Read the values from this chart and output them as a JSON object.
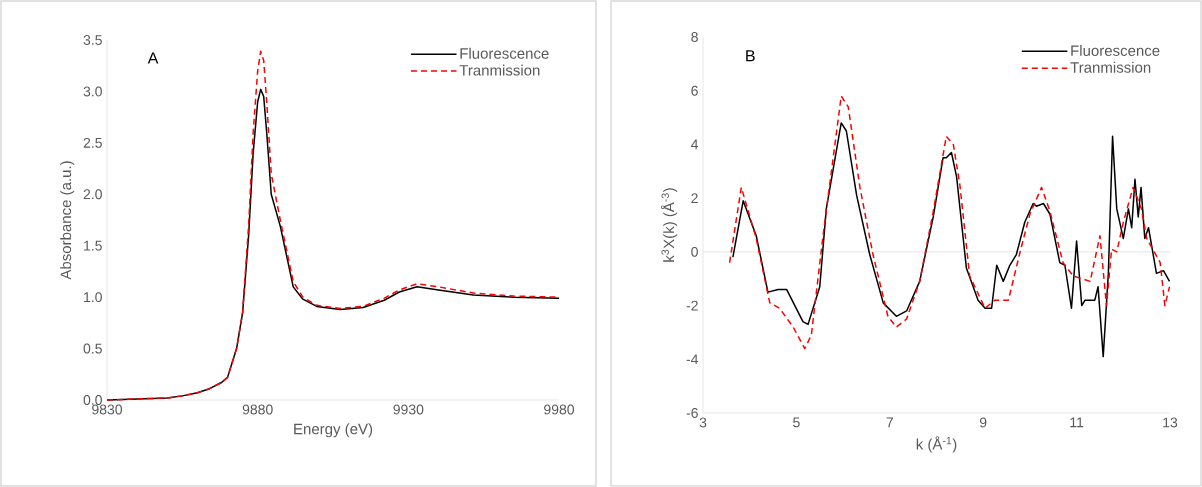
{
  "chart_data": [
    {
      "type": "line",
      "xlabel": "Energy (eV)",
      "ylabel": "Absorbance (a.u.)",
      "annotations": [
        "A"
      ],
      "legend": "top right",
      "xlim": [
        9830,
        9980
      ],
      "xticks": [
        9830,
        9880,
        9930,
        9980
      ],
      "ylim": [
        0,
        3.5
      ],
      "yticks": [
        {
          "value": 0,
          "label": "0.0"
        },
        0.5,
        {
          "value": 1,
          "label": "1.0"
        },
        1.5,
        {
          "value": 2,
          "label": "2.0"
        },
        2.5,
        {
          "value": 3,
          "label": "3.0"
        },
        3.5
      ],
      "series": [
        {
          "name": "Fluorescence",
          "color": "#000000",
          "line_style": "solid",
          "x": [
            9830,
            9840,
            9850,
            9855,
            9860,
            9864,
            9868,
            9870,
            9873,
            9875,
            9877,
            9878.5,
            9880,
            9881,
            9882,
            9883,
            9884.5,
            9887.5,
            9891.8,
            9895,
            9899.6,
            9907.4,
            9915,
            9922,
            9927,
            9932.9,
            9940,
            9951.6,
            9965,
            9980
          ],
          "values": [
            0.0,
            0.01,
            0.02,
            0.04,
            0.07,
            0.11,
            0.17,
            0.22,
            0.5,
            0.85,
            1.6,
            2.4,
            2.9,
            3.02,
            2.95,
            2.6,
            2.0,
            1.69,
            1.1,
            0.98,
            0.91,
            0.88,
            0.9,
            0.97,
            1.05,
            1.1,
            1.07,
            1.02,
            1.0,
            0.99
          ]
        },
        {
          "name": "Tranmission",
          "color": "#ff0000",
          "line_style": "dashed",
          "x": [
            9830,
            9840,
            9850,
            9855,
            9860,
            9864,
            9868,
            9870,
            9873,
            9875,
            9877,
            9878.5,
            9880,
            9881,
            9882,
            9883,
            9884.5,
            9887.5,
            9891.8,
            9895,
            9899.6,
            9907.4,
            9915,
            9922,
            9927,
            9932.9,
            9940,
            9951.6,
            9965,
            9980
          ],
          "values": [
            0.0,
            0.01,
            0.02,
            0.04,
            0.07,
            0.11,
            0.17,
            0.22,
            0.5,
            0.85,
            1.7,
            2.6,
            3.2,
            3.39,
            3.3,
            2.9,
            2.2,
            1.75,
            1.15,
            1.0,
            0.92,
            0.89,
            0.91,
            0.99,
            1.07,
            1.13,
            1.1,
            1.04,
            1.01,
            1.0
          ]
        }
      ]
    },
    {
      "type": "line",
      "xlabel": "k (Å$^{-1}$)",
      "ylabel": "k$^{3}$X(k) (Å$^{-3}$)",
      "annotations": [
        "B"
      ],
      "legend": "top right",
      "xlim": [
        3,
        13
      ],
      "xticks": [
        3,
        5,
        7,
        9,
        11,
        13
      ],
      "ylim": [
        -6,
        8
      ],
      "yticks": [
        -6,
        -4,
        -2,
        0,
        2,
        4,
        6,
        8
      ],
      "ref_lines": [
        {
          "axis": "y",
          "value": 0,
          "color": "#bfbfbf"
        }
      ],
      "series": [
        {
          "name": "Fluorescence",
          "color": "#000000",
          "line_style": "solid",
          "x": [
            3.64,
            3.86,
            4.14,
            4.39,
            4.61,
            4.79,
            5.14,
            5.25,
            5.5,
            5.64,
            5.96,
            6.07,
            6.29,
            6.57,
            6.86,
            7.14,
            7.36,
            7.64,
            7.93,
            8.14,
            8.21,
            8.32,
            8.43,
            8.64,
            8.89,
            9.04,
            9.18,
            9.29,
            9.43,
            9.57,
            9.71,
            9.89,
            10.07,
            10.14,
            10.29,
            10.43,
            10.64,
            10.75,
            10.89,
            11.0,
            11.11,
            11.18,
            11.39,
            11.46,
            11.57,
            11.68,
            11.77,
            11.86,
            12.0,
            12.11,
            12.18,
            12.25,
            12.32,
            12.38,
            12.46,
            12.54,
            12.71,
            12.86,
            12.99
          ],
          "values": [
            -0.2,
            1.9,
            0.6,
            -1.5,
            -1.4,
            -1.4,
            -2.6,
            -2.7,
            -1.3,
            1.6,
            4.8,
            4.5,
            2.1,
            -0.1,
            -1.9,
            -2.4,
            -2.2,
            -1.1,
            1.3,
            3.5,
            3.5,
            3.7,
            2.8,
            -0.6,
            -1.8,
            -2.1,
            -2.1,
            -0.5,
            -1.1,
            -0.5,
            -0.1,
            1.1,
            1.8,
            1.7,
            1.8,
            1.4,
            -0.4,
            -0.5,
            -2.1,
            0.4,
            -2.0,
            -1.8,
            -1.8,
            -1.3,
            -3.9,
            -0.8,
            4.3,
            1.6,
            0.5,
            1.6,
            0.9,
            2.7,
            1.3,
            2.4,
            0.5,
            0.9,
            -0.8,
            -0.7,
            -1.1
          ]
        },
        {
          "name": "Tranmission",
          "color": "#ff0000",
          "line_style": "dashed",
          "x": [
            3.57,
            3.82,
            4.14,
            4.43,
            4.64,
            4.93,
            5.18,
            5.32,
            5.57,
            5.96,
            6.11,
            6.36,
            6.64,
            6.96,
            7.14,
            7.36,
            7.64,
            7.93,
            8.21,
            8.36,
            8.5,
            8.71,
            9.04,
            9.25,
            9.54,
            9.79,
            10.0,
            10.25,
            10.43,
            10.71,
            10.93,
            11.29,
            11.5,
            11.64,
            11.75,
            11.86,
            12.0,
            12.21,
            12.39,
            12.5,
            12.79,
            12.89,
            12.99
          ],
          "values": [
            -0.4,
            2.4,
            0.5,
            -1.9,
            -2.1,
            -2.8,
            -3.6,
            -3.1,
            0.6,
            5.8,
            5.4,
            2.4,
            -0.1,
            -2.4,
            -2.8,
            -2.5,
            -1.1,
            1.5,
            4.3,
            4.0,
            2.5,
            -0.9,
            -2.1,
            -1.8,
            -1.8,
            0.0,
            1.4,
            2.4,
            1.5,
            -0.4,
            -0.9,
            -1.1,
            0.6,
            -2.0,
            0.1,
            0.0,
            1.1,
            2.4,
            1.6,
            0.5,
            -0.4,
            -2.0,
            -1.3
          ]
        }
      ]
    }
  ]
}
